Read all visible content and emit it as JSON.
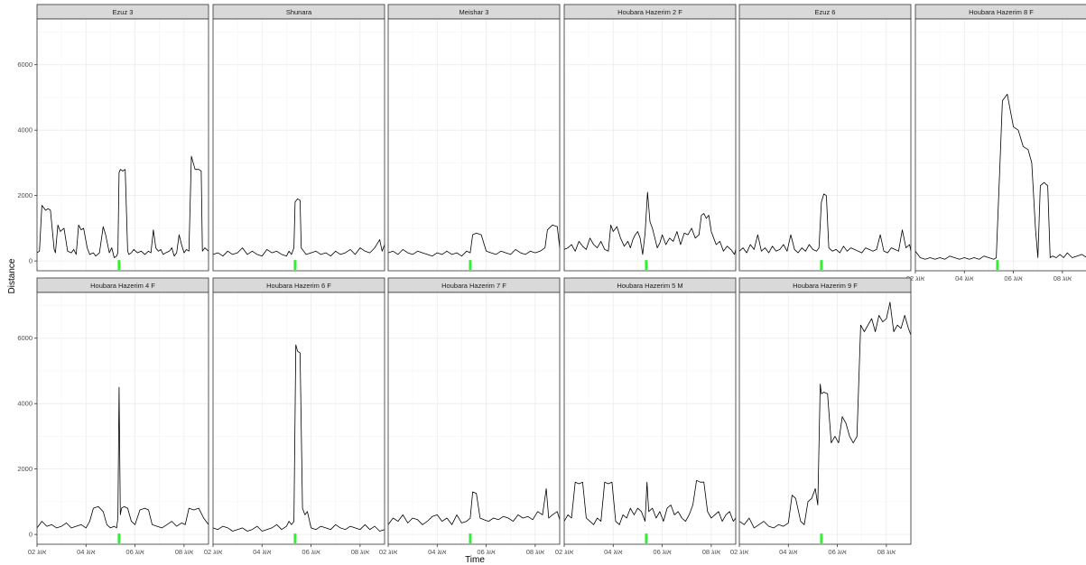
{
  "chart_data": {
    "type": "line",
    "xlabel": "Time",
    "ylabel": "Distance",
    "x_ticks": [
      "02 אוג",
      "04 אוג",
      "06 אוג",
      "08 אוג"
    ],
    "x_tick_values": [
      2,
      4,
      6,
      8
    ],
    "xlim": [
      2,
      9
    ],
    "y_ticks": [
      0,
      2000,
      4000,
      6000
    ],
    "ylim": [
      -300,
      7400
    ],
    "grid": true,
    "line_color": "#000000",
    "marker_color": "#33ee33",
    "marker_x": 5.35,
    "panels": [
      {
        "label": "Ezuz 3",
        "t": [
          2,
          2.1,
          2.2,
          2.35,
          2.45,
          2.55,
          2.7,
          2.75,
          2.85,
          2.95,
          3.1,
          3.25,
          3.4,
          3.5,
          3.6,
          3.7,
          3.8,
          3.9,
          4.05,
          4.15,
          4.3,
          4.4,
          4.55,
          4.7,
          4.8,
          4.95,
          5.05,
          5.15,
          5.25,
          5.3,
          5.35,
          5.4,
          5.5,
          5.6,
          5.7,
          5.75,
          5.85,
          5.95,
          6.1,
          6.25,
          6.4,
          6.55,
          6.65,
          6.75,
          6.85,
          6.95,
          7.05,
          7.15,
          7.25,
          7.4,
          7.5,
          7.6,
          7.7,
          7.8,
          7.9,
          8,
          8.1,
          8.2,
          8.3,
          8.45,
          8.6,
          8.7,
          8.75,
          8.85,
          9
        ],
        "v": [
          250,
          300,
          1700,
          1550,
          1600,
          1550,
          350,
          250,
          1100,
          900,
          1000,
          300,
          250,
          350,
          200,
          1100,
          950,
          1000,
          400,
          200,
          250,
          150,
          250,
          1050,
          800,
          250,
          400,
          100,
          150,
          250,
          2700,
          2800,
          2750,
          2800,
          300,
          200,
          250,
          350,
          250,
          300,
          200,
          300,
          250,
          950,
          400,
          300,
          350,
          200,
          250,
          300,
          400,
          150,
          250,
          800,
          500,
          250,
          350,
          300,
          3200,
          2800,
          2800,
          2750,
          300,
          400,
          300
        ]
      },
      {
        "label": "Shunara",
        "t": [
          2,
          2.2,
          2.4,
          2.6,
          2.8,
          3,
          3.2,
          3.4,
          3.6,
          3.8,
          4,
          4.2,
          4.4,
          4.6,
          4.8,
          5,
          5.1,
          5.2,
          5.3,
          5.35,
          5.45,
          5.55,
          5.6,
          5.7,
          5.8,
          6,
          6.2,
          6.4,
          6.6,
          6.8,
          7,
          7.2,
          7.4,
          7.6,
          7.8,
          8,
          8.2,
          8.4,
          8.6,
          8.8,
          8.9,
          9
        ],
        "v": [
          200,
          250,
          150,
          300,
          200,
          250,
          400,
          200,
          300,
          200,
          150,
          350,
          250,
          300,
          200,
          150,
          300,
          200,
          400,
          1800,
          1900,
          1850,
          400,
          300,
          200,
          250,
          300,
          200,
          250,
          150,
          300,
          200,
          250,
          350,
          200,
          400,
          300,
          250,
          400,
          650,
          300,
          500
        ]
      },
      {
        "label": "Meishar 3",
        "t": [
          2,
          2.2,
          2.4,
          2.6,
          2.8,
          3,
          3.2,
          3.4,
          3.6,
          3.8,
          4,
          4.2,
          4.4,
          4.6,
          4.8,
          5,
          5.2,
          5.35,
          5.45,
          5.6,
          5.8,
          6,
          6.2,
          6.4,
          6.6,
          6.8,
          7,
          7.2,
          7.4,
          7.6,
          7.8,
          8,
          8.2,
          8.4,
          8.5,
          8.7,
          8.9,
          9
        ],
        "v": [
          250,
          300,
          200,
          350,
          250,
          200,
          300,
          250,
          200,
          150,
          250,
          200,
          300,
          200,
          250,
          150,
          300,
          250,
          800,
          850,
          800,
          300,
          250,
          200,
          300,
          250,
          200,
          350,
          250,
          200,
          300,
          250,
          300,
          400,
          950,
          1100,
          1050,
          400
        ]
      },
      {
        "label": "Houbara Hazerim 2 F",
        "t": [
          2,
          2.15,
          2.3,
          2.45,
          2.6,
          2.75,
          2.9,
          3.05,
          3.2,
          3.35,
          3.5,
          3.65,
          3.8,
          3.9,
          4,
          4.15,
          4.3,
          4.45,
          4.6,
          4.7,
          4.8,
          4.9,
          5,
          5.1,
          5.2,
          5.3,
          5.4,
          5.5,
          5.6,
          5.7,
          5.8,
          5.9,
          6,
          6.15,
          6.3,
          6.45,
          6.6,
          6.75,
          6.9,
          7.05,
          7.2,
          7.35,
          7.5,
          7.6,
          7.7,
          7.8,
          7.9,
          8,
          8.1,
          8.2,
          8.35,
          8.5,
          8.65,
          8.8,
          8.95,
          9
        ],
        "v": [
          350,
          400,
          500,
          300,
          600,
          450,
          350,
          700,
          500,
          400,
          600,
          350,
          300,
          1100,
          900,
          1050,
          700,
          450,
          600,
          400,
          650,
          800,
          900,
          700,
          200,
          850,
          2100,
          1200,
          1000,
          700,
          400,
          550,
          800,
          500,
          700,
          600,
          900,
          500,
          850,
          800,
          1000,
          700,
          800,
          1400,
          1450,
          1300,
          1400,
          900,
          700,
          500,
          600,
          300,
          450,
          350,
          200,
          350
        ]
      },
      {
        "label": "Ezuz 6",
        "t": [
          2,
          2.15,
          2.3,
          2.45,
          2.6,
          2.75,
          2.9,
          3.05,
          3.2,
          3.35,
          3.5,
          3.65,
          3.8,
          3.95,
          4.1,
          4.25,
          4.4,
          4.55,
          4.7,
          4.85,
          5,
          5.15,
          5.25,
          5.35,
          5.45,
          5.55,
          5.65,
          5.8,
          5.95,
          6.1,
          6.25,
          6.4,
          6.55,
          6.7,
          6.85,
          7,
          7.15,
          7.3,
          7.45,
          7.6,
          7.75,
          7.9,
          8.05,
          8.2,
          8.35,
          8.5,
          8.65,
          8.8,
          8.95,
          9
        ],
        "v": [
          300,
          400,
          250,
          500,
          350,
          800,
          300,
          400,
          250,
          450,
          300,
          350,
          500,
          300,
          800,
          350,
          250,
          400,
          300,
          500,
          350,
          300,
          400,
          1800,
          2050,
          2000,
          400,
          300,
          350,
          250,
          450,
          300,
          400,
          350,
          300,
          250,
          400,
          350,
          300,
          350,
          800,
          300,
          250,
          400,
          350,
          300,
          950,
          400,
          500,
          300
        ]
      },
      {
        "label": "Houbara Hazerim 8 F",
        "t": [
          2,
          2.2,
          2.4,
          2.6,
          2.8,
          3,
          3.2,
          3.4,
          3.6,
          3.8,
          4,
          4.2,
          4.4,
          4.6,
          4.8,
          5,
          5.2,
          5.3,
          5.45,
          5.55,
          5.65,
          5.75,
          5.85,
          6.0,
          6.2,
          6.4,
          6.6,
          6.75,
          6.9,
          7.0,
          7.1,
          7.25,
          7.4,
          7.5,
          7.6,
          7.75,
          7.9,
          8.05,
          8.2,
          8.4,
          8.6,
          8.8,
          9
        ],
        "v": [
          300,
          100,
          50,
          100,
          50,
          100,
          50,
          150,
          100,
          50,
          100,
          50,
          100,
          50,
          150,
          100,
          50,
          100,
          2900,
          4900,
          5000,
          5100,
          4700,
          4100,
          4000,
          3500,
          3400,
          3000,
          1000,
          100,
          2300,
          2400,
          2300,
          100,
          150,
          100,
          200,
          100,
          250,
          100,
          150,
          200,
          100
        ]
      },
      {
        "label": "Houbara Hazerim 4 F",
        "t": [
          2,
          2.2,
          2.4,
          2.6,
          2.8,
          3,
          3.2,
          3.4,
          3.6,
          3.8,
          4,
          4.15,
          4.3,
          4.5,
          4.7,
          4.85,
          5,
          5.15,
          5.25,
          5.3,
          5.35,
          5.4,
          5.45,
          5.55,
          5.7,
          5.85,
          6,
          6.2,
          6.4,
          6.55,
          6.7,
          6.9,
          7.1,
          7.3,
          7.5,
          7.7,
          7.9,
          8.05,
          8.2,
          8.4,
          8.6,
          8.8,
          9
        ],
        "v": [
          200,
          400,
          250,
          300,
          200,
          250,
          350,
          200,
          250,
          300,
          200,
          400,
          800,
          850,
          700,
          300,
          200,
          250,
          200,
          500,
          4500,
          600,
          800,
          850,
          800,
          400,
          300,
          750,
          800,
          750,
          300,
          250,
          200,
          300,
          400,
          250,
          350,
          300,
          800,
          750,
          800,
          500,
          300
        ]
      },
      {
        "label": "Houbara Hazerim 6 F",
        "t": [
          2,
          2.2,
          2.4,
          2.6,
          2.8,
          3,
          3.2,
          3.4,
          3.6,
          3.8,
          4,
          4.2,
          4.4,
          4.6,
          4.8,
          5,
          5.1,
          5.2,
          5.3,
          5.38,
          5.45,
          5.55,
          5.65,
          5.75,
          5.85,
          6,
          6.2,
          6.4,
          6.6,
          6.8,
          7,
          7.2,
          7.4,
          7.6,
          7.8,
          8,
          8.2,
          8.4,
          8.6,
          8.8,
          9
        ],
        "v": [
          200,
          150,
          250,
          200,
          100,
          150,
          200,
          100,
          150,
          250,
          100,
          150,
          200,
          300,
          150,
          250,
          400,
          300,
          400,
          5800,
          5600,
          5550,
          800,
          600,
          700,
          200,
          150,
          250,
          200,
          150,
          300,
          200,
          150,
          250,
          200,
          150,
          300,
          150,
          250,
          100,
          150
        ]
      },
      {
        "label": "Houbara Hazerim 7 F",
        "t": [
          2,
          2.2,
          2.4,
          2.6,
          2.8,
          3,
          3.2,
          3.4,
          3.6,
          3.8,
          4,
          4.2,
          4.4,
          4.6,
          4.8,
          5,
          5.2,
          5.35,
          5.45,
          5.6,
          5.75,
          5.9,
          6.1,
          6.3,
          6.5,
          6.7,
          6.9,
          7.1,
          7.3,
          7.5,
          7.7,
          7.9,
          8.1,
          8.3,
          8.45,
          8.55,
          8.7,
          8.9,
          9
        ],
        "v": [
          300,
          500,
          400,
          600,
          350,
          500,
          450,
          300,
          400,
          550,
          600,
          400,
          500,
          300,
          600,
          350,
          400,
          500,
          1300,
          1250,
          500,
          450,
          400,
          500,
          450,
          550,
          500,
          400,
          600,
          500,
          550,
          450,
          700,
          600,
          1400,
          500,
          600,
          700,
          450
        ]
      },
      {
        "label": "Houbara Hazerim 5 M",
        "t": [
          2,
          2.15,
          2.3,
          2.45,
          2.6,
          2.75,
          2.9,
          3.05,
          3.2,
          3.35,
          3.5,
          3.65,
          3.8,
          3.95,
          4.1,
          4.25,
          4.4,
          4.55,
          4.7,
          4.85,
          5,
          5.15,
          5.3,
          5.38,
          5.45,
          5.6,
          5.75,
          5.9,
          6.05,
          6.2,
          6.35,
          6.5,
          6.65,
          6.8,
          6.95,
          7.1,
          7.25,
          7.4,
          7.55,
          7.7,
          7.85,
          8,
          8.15,
          8.3,
          8.45,
          8.6,
          8.75,
          8.9,
          9
        ],
        "v": [
          400,
          600,
          500,
          1600,
          1550,
          1600,
          500,
          400,
          300,
          500,
          400,
          1600,
          1550,
          1600,
          400,
          300,
          600,
          500,
          800,
          600,
          800,
          700,
          400,
          1600,
          700,
          800,
          500,
          700,
          400,
          800,
          900,
          600,
          700,
          500,
          400,
          600,
          900,
          1650,
          1600,
          1600,
          700,
          500,
          600,
          700,
          400,
          600,
          700,
          400,
          500
        ]
      },
      {
        "label": "Houbara Hazerim 9 F",
        "t": [
          2,
          2.2,
          2.4,
          2.6,
          2.8,
          3,
          3.2,
          3.4,
          3.6,
          3.8,
          4,
          4.15,
          4.3,
          4.5,
          4.65,
          4.8,
          4.95,
          5.1,
          5.2,
          5.3,
          5.35,
          5.45,
          5.6,
          5.75,
          5.9,
          6.05,
          6.2,
          6.35,
          6.5,
          6.65,
          6.8,
          6.95,
          7.1,
          7.25,
          7.4,
          7.55,
          7.7,
          7.85,
          8,
          8.15,
          8.3,
          8.45,
          8.6,
          8.75,
          8.9,
          9
        ],
        "v": [
          400,
          300,
          500,
          200,
          300,
          400,
          250,
          200,
          300,
          250,
          350,
          1200,
          1100,
          400,
          300,
          1000,
          1100,
          1400,
          900,
          4600,
          4300,
          4350,
          4300,
          2800,
          3000,
          2800,
          3600,
          3400,
          3000,
          2800,
          3000,
          6400,
          6200,
          6400,
          6600,
          6200,
          6700,
          6500,
          6600,
          7100,
          6200,
          6400,
          6300,
          6700,
          6300,
          6100
        ]
      }
    ]
  }
}
